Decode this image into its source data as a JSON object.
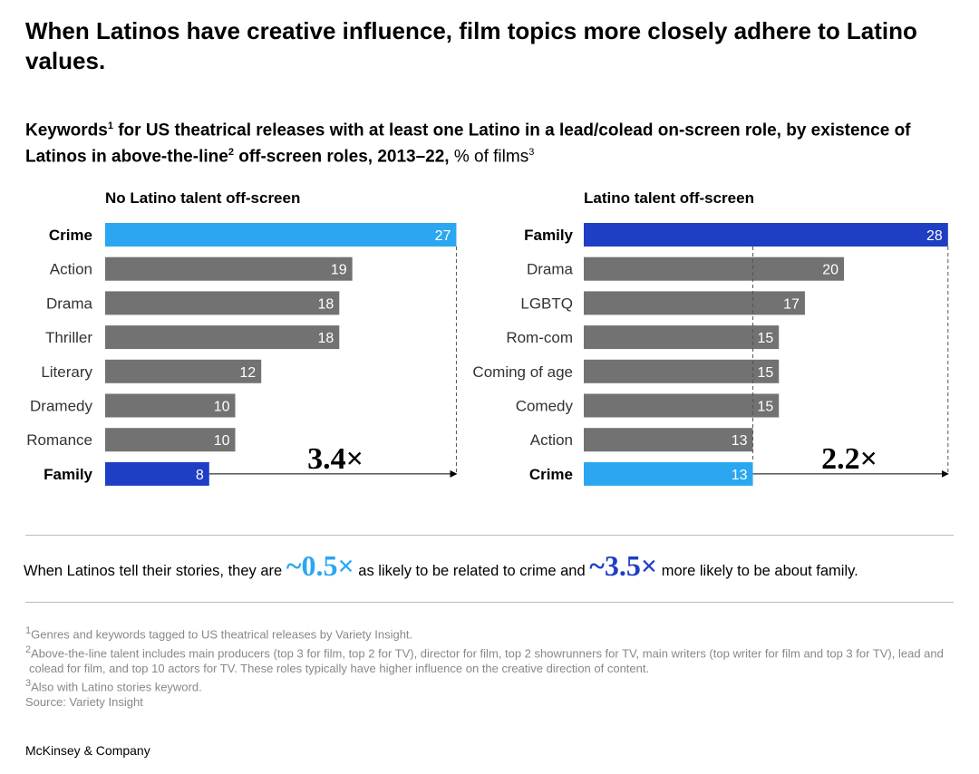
{
  "title": "When Latinos have creative influence, film topics more closely adhere to Latino values.",
  "subtitle": {
    "part1": "Keywords",
    "sup1": "1",
    "part2": " for US theatrical releases with at least one Latino in a lead/colead on-screen role, by existence of Latinos in above-the-line",
    "sup2": "2",
    "part3": " off-screen roles, 2013–22,",
    "unit": " % of films",
    "sup3": "3"
  },
  "colors": {
    "crime": "#2aa7f0",
    "family": "#1e3ec4",
    "other": "#727272"
  },
  "chart_data": [
    {
      "type": "bar",
      "title": "No Latino talent off-screen",
      "categories": [
        "Crime",
        "Action",
        "Drama",
        "Thriller",
        "Literary",
        "Dramedy",
        "Romance",
        "Family"
      ],
      "values": [
        27,
        19,
        18,
        18,
        12,
        10,
        10,
        8
      ],
      "highlight": {
        "Crime": "crime",
        "Family": "family"
      },
      "multiplier": "3.4×",
      "unit": "% of films"
    },
    {
      "type": "bar",
      "title": "Latino talent off-screen",
      "categories": [
        "Family",
        "Drama",
        "LGBTQ",
        "Rom-com",
        "Coming of age",
        "Comedy",
        "Action",
        "Crime"
      ],
      "values": [
        28,
        20,
        17,
        15,
        15,
        15,
        13,
        13
      ],
      "highlight": {
        "Family": "family",
        "Crime": "crime"
      },
      "multiplier": "2.2×",
      "unit": "% of films"
    }
  ],
  "callout": {
    "t1": "When Latinos tell their stories, they are ",
    "v1": "~0.5×",
    "t2": " as likely to be related to crime and ",
    "v2": "~3.5×",
    "t3": " more likely to be about family."
  },
  "footnotes": [
    {
      "sup": "1",
      "text": "Genres and keywords tagged to US theatrical releases by Variety Insight."
    },
    {
      "sup": "2",
      "text": "Above-the-line talent includes main producers (top 3 for film, top 2 for TV), director for film, top 2 showrunners for TV, main writers (top writer for film and top 3 for TV), lead and colead for film, and top 10 actors for TV. These roles typically have higher influence on the creative direction of content."
    },
    {
      "sup": "3",
      "text": "Also with Latino stories keyword."
    },
    {
      "sup": "",
      "text": "Source: Variety Insight"
    }
  ],
  "brand": "McKinsey & Company"
}
